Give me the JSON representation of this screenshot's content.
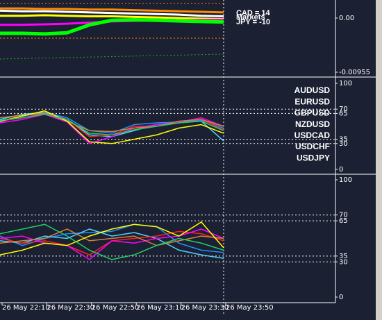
{
  "chart_data": [
    {
      "type": "line",
      "ylim": [
        -0.0103,
        0.0032
      ],
      "yticks": [
        {
          "value": 0,
          "label": "0.00"
        },
        {
          "value": -0.00955,
          "label": "-0.00955"
        }
      ],
      "annotations": [
        "CAD = 14",
        "Markets",
        "JPY = -10"
      ],
      "series": [
        {
          "color": "#ff8c00",
          "values": [
            0.0017,
            0.0017,
            0.0016,
            0.0016,
            0.0015,
            0.0015,
            0.0014,
            0.0013,
            0.0012,
            0.0011,
            0.001
          ]
        },
        {
          "color": "#ffffff",
          "values": [
            0.0013,
            0.0012,
            0.0012,
            0.0011,
            0.001,
            0.0009,
            0.0008,
            0.0007,
            0.0006,
            0.0004,
            0.0003
          ]
        },
        {
          "color": "#ffff00",
          "values": [
            0.0004,
            0.0004,
            0.0005,
            0.0004,
            0.0003,
            0.0003,
            0.0002,
            0.0001,
            0.0,
            -0.0001,
            -0.0002
          ]
        },
        {
          "color": "#ff00ff",
          "values": [
            -0.0012,
            -0.0012,
            -0.0011,
            -0.001,
            -0.0008,
            -0.0006,
            -0.0005,
            -0.0004,
            -0.0004,
            -0.0003,
            -0.0003
          ]
        },
        {
          "color": "#00ff00",
          "values": [
            -0.0027,
            -0.0027,
            -0.0028,
            -0.0026,
            -0.0012,
            -0.0004,
            -0.0003,
            -0.0004,
            -0.0005,
            -0.0006,
            -0.0007
          ]
        }
      ]
    },
    {
      "type": "line",
      "ylim": [
        0,
        100
      ],
      "yticks": [
        100,
        70,
        65,
        35,
        30,
        0
      ],
      "series": [
        {
          "name": "AUDUSD",
          "color": "#1e90ff",
          "values": [
            55,
            62,
            66,
            60,
            45,
            42,
            52,
            54,
            55,
            57,
            48
          ]
        },
        {
          "name": "EURUSD",
          "color": "#4fd2ff",
          "values": [
            58,
            64,
            66,
            58,
            40,
            38,
            45,
            52,
            54,
            56,
            33
          ]
        },
        {
          "name": "GBPUSD",
          "color": "#ff2020",
          "values": [
            56,
            60,
            65,
            58,
            38,
            40,
            50,
            50,
            56,
            58,
            46
          ]
        },
        {
          "name": "NZDUSD",
          "color": "#ff00ff",
          "values": [
            54,
            58,
            64,
            55,
            30,
            38,
            48,
            52,
            55,
            60,
            50
          ]
        },
        {
          "name": "USDCAD",
          "color": "#d2843c",
          "values": [
            60,
            63,
            65,
            56,
            45,
            44,
            48,
            50,
            56,
            58,
            50
          ]
        },
        {
          "name": "USDCHF",
          "color": "#ffff00",
          "values": [
            56,
            62,
            68,
            56,
            32,
            30,
            35,
            40,
            48,
            52,
            42
          ]
        },
        {
          "name": "USDJPY",
          "color": "#22cc66",
          "values": [
            57,
            60,
            64,
            58,
            42,
            40,
            46,
            50,
            54,
            56,
            45
          ]
        }
      ]
    },
    {
      "type": "line",
      "ylim": [
        0,
        100
      ],
      "yticks": [
        100,
        70,
        65,
        35,
        30,
        0
      ],
      "categories": [
        "26 May 22:10",
        null,
        "26 May 22:30",
        null,
        "26 May 22:50",
        null,
        "26 May 23:10",
        null,
        "26 May 23:30",
        null,
        "26 May 23:50"
      ],
      "series": [
        {
          "color": "#1e90ff",
          "values": [
            52,
            44,
            50,
            54,
            55,
            56,
            62,
            60,
            46,
            40,
            38
          ]
        },
        {
          "color": "#4fd2ff",
          "values": [
            48,
            46,
            52,
            50,
            58,
            52,
            55,
            50,
            40,
            36,
            33
          ]
        },
        {
          "color": "#ff2020",
          "values": [
            50,
            46,
            48,
            44,
            36,
            48,
            50,
            52,
            56,
            54,
            48
          ]
        },
        {
          "color": "#ff00ff",
          "values": [
            50,
            52,
            46,
            44,
            32,
            48,
            46,
            50,
            52,
            58,
            50
          ]
        },
        {
          "color": "#d2843c",
          "values": [
            46,
            48,
            50,
            58,
            48,
            50,
            52,
            44,
            48,
            52,
            50
          ]
        },
        {
          "color": "#ffff00",
          "values": [
            36,
            40,
            46,
            44,
            52,
            58,
            62,
            60,
            52,
            64,
            42
          ]
        },
        {
          "color": "#22cc66",
          "values": [
            54,
            58,
            62,
            52,
            40,
            32,
            36,
            44,
            50,
            46,
            40
          ]
        }
      ]
    }
  ]
}
